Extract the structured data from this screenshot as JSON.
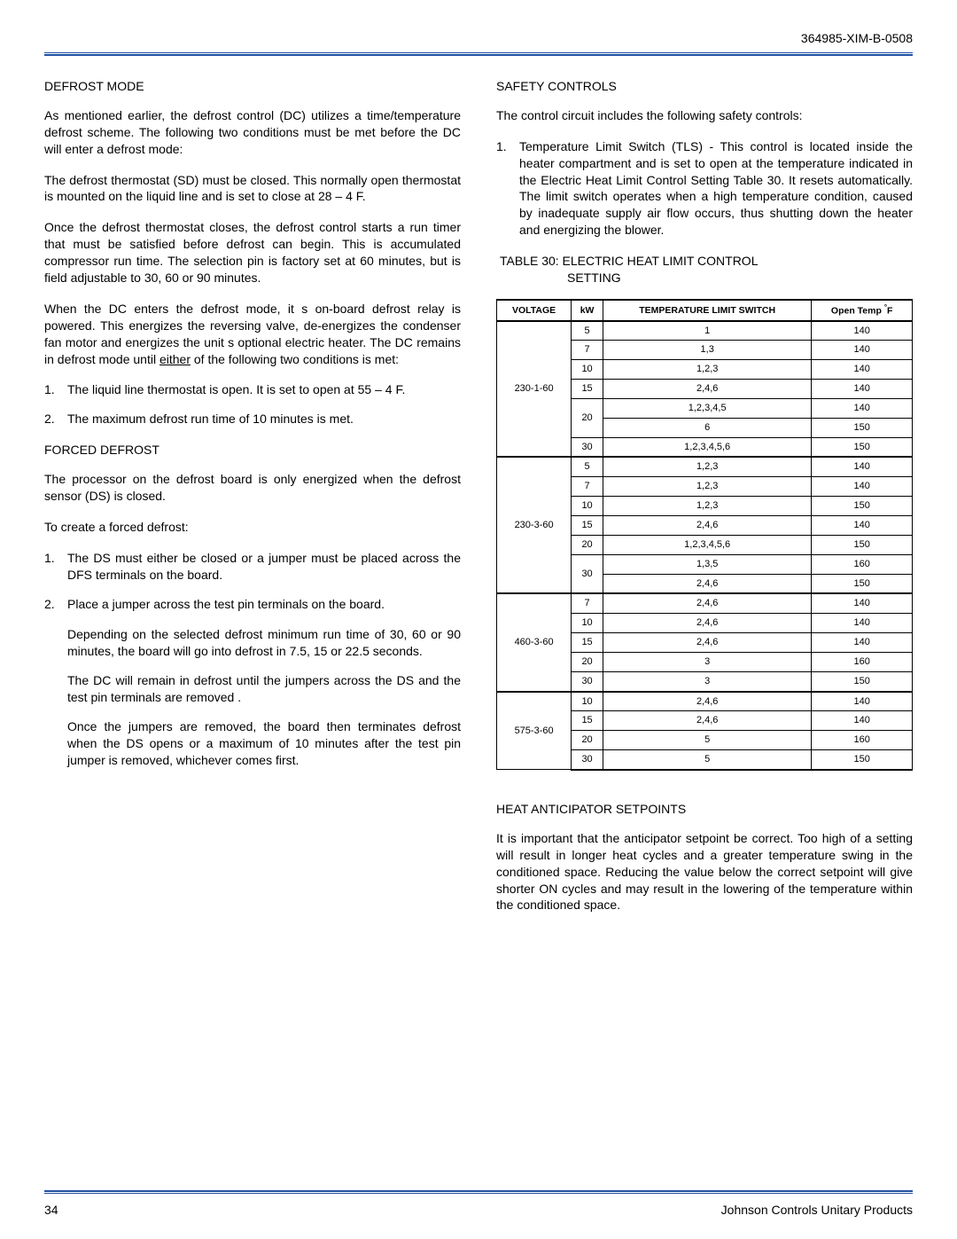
{
  "header": {
    "doc_id": "364985-XIM-B-0508"
  },
  "left": {
    "s1_title": "DEFROST MODE",
    "s1_p1": "As mentioned earlier, the defrost control (DC) utilizes a time/temperature defrost scheme. The following two conditions must be met before the DC will enter a defrost mode:",
    "s1_p2": "The defrost thermostat (SD) must be closed. This normally open thermostat is mounted on the liquid line and is set to close at 28 – 4 F.",
    "s1_p3": "Once the defrost thermostat closes, the defrost control starts a run timer that must be satisfied before defrost can begin. This is accumulated compressor run time. The selection pin is factory set at 60 minutes, but is field adjustable to 30, 60 or 90 minutes.",
    "s1_p4_pre": "When the DC enters the defrost mode, it s on-board defrost relay is powered. This energizes the reversing valve, de-energizes the condenser fan motor and energizes the unit s optional electric heater. The DC remains in defrost mode until ",
    "s1_p4_u": "either",
    "s1_p4_post": " of the following two conditions is met:",
    "s1_li1": "The liquid line thermostat is open. It is set to open at 55 – 4 F.",
    "s1_li2": "The maximum defrost run time of 10 minutes is met.",
    "s2_title": "FORCED DEFROST",
    "s2_p1": "The processor on the defrost board is only energized when the defrost sensor (DS) is closed.",
    "s2_p2": "To create a forced defrost:",
    "s2_li1": "The DS must either be closed or a jumper must be placed across the DFS terminals on the board.",
    "s2_li2": "Place a jumper across the test pin terminals on the board.",
    "s2_li2a": "Depending on the selected defrost minimum run time of 30, 60 or 90 minutes, the board will go into defrost in 7.5, 15 or 22.5 seconds.",
    "s2_li2b": "The DC will remain in defrost until the jumpers across the DS and the test pin terminals are removed .",
    "s2_li2c": "Once the jumpers are removed, the board then terminates defrost when the DS opens or a maximum of 10 minutes after the test pin jumper is removed, whichever comes first."
  },
  "right": {
    "s3_title": "SAFETY CONTROLS",
    "s3_p1": "The control circuit includes the following safety controls:",
    "s3_li1": "Temperature Limit Switch (TLS) - This control is located inside the heater compartment and is set to open at the temperature indicated in the Electric Heat Limit Control Setting Table 30. It resets automatically. The limit switch operates when a high temperature condition, caused by inadequate supply air flow occurs, thus shutting down the heater and energizing the blower.",
    "table_caption_l1": "TABLE 30: ELECTRIC HEAT LIMIT CONTROL",
    "table_caption_l2": "SETTING",
    "thead": {
      "c1": "VOLTAGE",
      "c2": "kW",
      "c3": "TEMPERATURE LIMIT SWITCH",
      "c4_pre": "Open Temp ",
      "c4_sup": "°",
      "c4_post": "F"
    },
    "groups": [
      {
        "voltage": "230-1-60",
        "rows": [
          {
            "kw": "5",
            "sw": "1",
            "t": "140",
            "rs": 1
          },
          {
            "kw": "7",
            "sw": "1,3",
            "t": "140",
            "rs": 1
          },
          {
            "kw": "10",
            "sw": "1,2,3",
            "t": "140",
            "rs": 1
          },
          {
            "kw": "15",
            "sw": "2,4,6",
            "t": "140",
            "rs": 1
          },
          {
            "kw": "20",
            "sw": "1,2,3,4,5",
            "t": "140",
            "rs": 2
          },
          {
            "kw": "",
            "sw": "6",
            "t": "150",
            "rs": 0
          },
          {
            "kw": "30",
            "sw": "1,2,3,4,5,6",
            "t": "150",
            "rs": 1
          }
        ]
      },
      {
        "voltage": "230-3-60",
        "rows": [
          {
            "kw": "5",
            "sw": "1,2,3",
            "t": "140",
            "rs": 1
          },
          {
            "kw": "7",
            "sw": "1,2,3",
            "t": "140",
            "rs": 1
          },
          {
            "kw": "10",
            "sw": "1,2,3",
            "t": "150",
            "rs": 1
          },
          {
            "kw": "15",
            "sw": "2,4,6",
            "t": "140",
            "rs": 1
          },
          {
            "kw": "20",
            "sw": "1,2,3,4,5,6",
            "t": "150",
            "rs": 1
          },
          {
            "kw": "30",
            "sw": "1,3,5",
            "t": "160",
            "rs": 2
          },
          {
            "kw": "",
            "sw": "2,4,6",
            "t": "150",
            "rs": 0
          }
        ]
      },
      {
        "voltage": "460-3-60",
        "rows": [
          {
            "kw": "7",
            "sw": "2,4,6",
            "t": "140",
            "rs": 1
          },
          {
            "kw": "10",
            "sw": "2,4,6",
            "t": "140",
            "rs": 1
          },
          {
            "kw": "15",
            "sw": "2,4,6",
            "t": "140",
            "rs": 1
          },
          {
            "kw": "20",
            "sw": "3",
            "t": "160",
            "rs": 1
          },
          {
            "kw": "30",
            "sw": "3",
            "t": "150",
            "rs": 1
          }
        ]
      },
      {
        "voltage": "575-3-60",
        "rows": [
          {
            "kw": "10",
            "sw": "2,4,6",
            "t": "140",
            "rs": 1
          },
          {
            "kw": "15",
            "sw": "2,4,6",
            "t": "140",
            "rs": 1
          },
          {
            "kw": "20",
            "sw": "5",
            "t": "160",
            "rs": 1
          },
          {
            "kw": "30",
            "sw": "5",
            "t": "150",
            "rs": 1
          }
        ]
      }
    ],
    "s4_title": "HEAT ANTICIPATOR SETPOINTS",
    "s4_p1": "It is important that the anticipator setpoint be correct. Too high of a setting will result in longer heat cycles and a greater temperature swing in the conditioned space. Reducing the value below the correct setpoint will give shorter ON cycles and may result in the lowering of the temperature within the conditioned space."
  },
  "footer": {
    "page": "34",
    "brand": "Johnson Controls Unitary Products"
  },
  "colors": {
    "rule": "#2050a0",
    "text": "#000000",
    "bg": "#ffffff"
  }
}
